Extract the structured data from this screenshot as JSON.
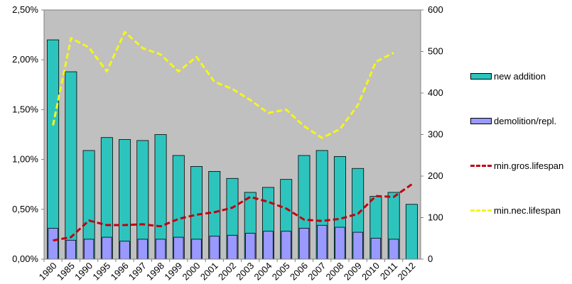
{
  "chart_data": {
    "type": "bar",
    "categories": [
      "1980",
      "1985",
      "1990",
      "1995",
      "1996",
      "1997",
      "1998",
      "1999",
      "2000",
      "2001",
      "2002",
      "2003",
      "2004",
      "2005",
      "2006",
      "2007",
      "2008",
      "2009",
      "2010",
      "2011",
      "2012"
    ],
    "bar_series": [
      {
        "name": "new addition",
        "color": "#2ec4be",
        "axis": "left",
        "values": [
          2.2,
          1.88,
          1.09,
          1.22,
          1.2,
          1.19,
          1.25,
          1.04,
          0.93,
          0.88,
          0.81,
          0.67,
          0.72,
          0.8,
          1.04,
          1.09,
          1.03,
          0.91,
          0.63,
          0.67,
          0.55
        ]
      },
      {
        "name": "demolition/repl.",
        "color": "#9999ff",
        "axis": "left",
        "values": [
          0.31,
          0.19,
          0.2,
          0.22,
          0.18,
          0.2,
          0.2,
          0.22,
          0.2,
          0.23,
          0.24,
          0.26,
          0.28,
          0.28,
          0.31,
          0.34,
          0.32,
          0.27,
          0.21,
          0.2,
          null
        ]
      }
    ],
    "line_series": [
      {
        "name": "min.gros.lifespan",
        "color": "#c0000f",
        "axis": "right",
        "values": [
          45,
          53,
          93,
          82,
          82,
          84,
          79,
          97,
          107,
          113,
          124,
          150,
          138,
          122,
          95,
          92,
          97,
          109,
          152,
          150,
          180
        ]
      },
      {
        "name": "min.nec.lifespan",
        "color": "#f5f51c",
        "axis": "right",
        "values": [
          322,
          532,
          510,
          452,
          547,
          508,
          493,
          452,
          487,
          427,
          410,
          383,
          352,
          360,
          320,
          292,
          313,
          371,
          475,
          497,
          null
        ]
      }
    ],
    "y_left": {
      "min": 0,
      "max": 2.5,
      "ticks": [
        "0,00%",
        "0,50%",
        "1,00%",
        "1,50%",
        "2,00%",
        "2,50%"
      ]
    },
    "y_right": {
      "min": 0,
      "max": 600,
      "ticks": [
        "0",
        "100",
        "200",
        "300",
        "400",
        "500",
        "600"
      ]
    },
    "plot_background": "#c0c0c0",
    "legend_position": "right"
  }
}
